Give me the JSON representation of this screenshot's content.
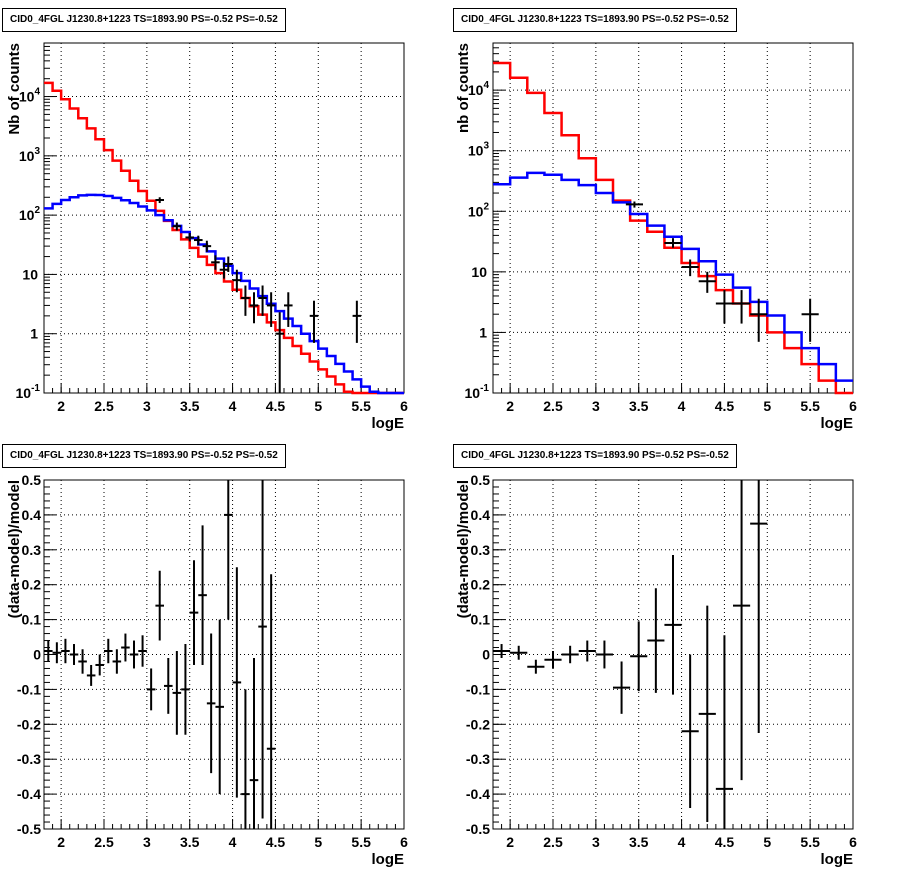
{
  "chart_data": [
    {
      "type": "histogram-log",
      "title": "CID0_4FGL J1230.8+1223 TS=1893.90 PS=-0.52 PS=-0.52",
      "xlabel": "logE",
      "ylabel": "Nb of counts",
      "xlim": [
        1.8,
        6.0
      ],
      "ylim": [
        0.1,
        80000
      ],
      "log_y": true,
      "grid": true,
      "x_ticks": [
        "2",
        "2.5",
        "3",
        "3.5",
        "4",
        "4.5",
        "5",
        "5.5",
        "6"
      ],
      "y_ticks": [
        "10^-1",
        "1",
        "10",
        "10^2",
        "10^3",
        "10^4"
      ],
      "bin_width": 0.1,
      "bin_edges_start": 1.8,
      "series": [
        {
          "color": "#ff0000",
          "values": [
            17000,
            12500,
            9000,
            6300,
            4300,
            2900,
            1900,
            1250,
            830,
            560,
            380,
            255,
            175,
            118,
            80,
            56,
            39,
            28,
            20,
            14.5,
            10.5,
            7.6,
            5.5,
            4.0,
            2.9,
            2.1,
            1.55,
            1.15,
            0.85,
            0.62,
            0.46,
            0.34,
            0.25,
            0.19,
            0.14,
            0.105,
            0.1,
            0.1,
            0.1,
            0.1,
            0.1,
            0.1
          ]
        },
        {
          "color": "#0000ff",
          "values": [
            130,
            155,
            180,
            200,
            215,
            220,
            218,
            210,
            195,
            178,
            160,
            140,
            120,
            100,
            82,
            66,
            52,
            41,
            32,
            24.5,
            18.5,
            14,
            10.5,
            7.8,
            5.8,
            4.3,
            3.2,
            2.4,
            1.8,
            1.35,
            1.0,
            0.75,
            0.56,
            0.42,
            0.31,
            0.23,
            0.17,
            0.128,
            0.105,
            0.1,
            0.1,
            0.1
          ]
        }
      ],
      "points": [
        {
          "x": 3.15,
          "y": 180,
          "lo": 160,
          "hi": 200
        },
        {
          "x": 3.35,
          "y": 65,
          "lo": 55,
          "hi": 75
        },
        {
          "x": 3.5,
          "y": 42,
          "lo": 36,
          "hi": 50
        },
        {
          "x": 3.6,
          "y": 38,
          "lo": 31,
          "hi": 45
        },
        {
          "x": 3.7,
          "y": 30,
          "lo": 24,
          "hi": 37
        },
        {
          "x": 3.8,
          "y": 16,
          "lo": 12,
          "hi": 21
        },
        {
          "x": 3.9,
          "y": 12,
          "lo": 8.5,
          "hi": 16
        },
        {
          "x": 3.95,
          "y": 15,
          "lo": 11,
          "hi": 20
        },
        {
          "x": 4.05,
          "y": 8,
          "lo": 5,
          "hi": 12
        },
        {
          "x": 4.15,
          "y": 4,
          "lo": 2,
          "hi": 6.5
        },
        {
          "x": 4.25,
          "y": 3,
          "lo": 1.5,
          "hi": 5
        },
        {
          "x": 4.35,
          "y": 4,
          "lo": 2,
          "hi": 6.5
        },
        {
          "x": 4.45,
          "y": 3,
          "lo": 1.3,
          "hi": 5
        },
        {
          "x": 4.55,
          "y": 1,
          "lo": 0.08,
          "hi": 2.3
        },
        {
          "x": 4.65,
          "y": 3,
          "lo": 1.3,
          "hi": 5
        },
        {
          "x": 4.95,
          "y": 2,
          "lo": 0.7,
          "hi": 3.6
        },
        {
          "x": 5.45,
          "y": 2,
          "lo": 0.7,
          "hi": 3.6
        }
      ]
    },
    {
      "type": "histogram-log",
      "title": "CID0_4FGL J1230.8+1223 TS=1893.90 PS=-0.52 PS=-0.52",
      "xlabel": "logE",
      "ylabel": "nb of counts",
      "xlim": [
        1.8,
        6.0
      ],
      "ylim": [
        0.1,
        60000
      ],
      "log_y": true,
      "grid": true,
      "x_ticks": [
        "2",
        "2.5",
        "3",
        "3.5",
        "4",
        "4.5",
        "5",
        "5.5",
        "6"
      ],
      "y_ticks": [
        "10^-1",
        "1",
        "10",
        "10^2",
        "10^3",
        "10^4"
      ],
      "bin_width": 0.2,
      "bin_edges_start": 1.8,
      "series": [
        {
          "color": "#ff0000",
          "values": [
            28000,
            16000,
            9000,
            4200,
            1800,
            750,
            330,
            150,
            70,
            46,
            25,
            14,
            8.5,
            5,
            3,
            1.9,
            1.0,
            0.55,
            0.3,
            0.16,
            0.1
          ]
        },
        {
          "color": "#0000ff",
          "values": [
            280,
            360,
            430,
            400,
            330,
            270,
            200,
            140,
            90,
            58,
            38,
            24,
            15,
            9,
            5.5,
            3.2,
            1.9,
            1.0,
            0.55,
            0.3,
            0.16
          ]
        }
      ],
      "points": [
        {
          "x": 3.45,
          "y": 130,
          "lo": 115,
          "hi": 145
        },
        {
          "x": 3.9,
          "y": 30,
          "lo": 25,
          "hi": 36
        },
        {
          "x": 4.1,
          "y": 12,
          "lo": 8.5,
          "hi": 16
        },
        {
          "x": 4.3,
          "y": 7,
          "lo": 4.5,
          "hi": 10
        },
        {
          "x": 4.5,
          "y": 3,
          "lo": 1.4,
          "hi": 5
        },
        {
          "x": 4.7,
          "y": 3,
          "lo": 1.4,
          "hi": 5
        },
        {
          "x": 4.9,
          "y": 2,
          "lo": 0.7,
          "hi": 3.6
        },
        {
          "x": 5.5,
          "y": 2,
          "lo": 0.7,
          "hi": 3.6
        }
      ]
    },
    {
      "type": "errorbar",
      "title": "CID0_4FGL J1230.8+1223 TS=1893.90 PS=-0.52 PS=-0.52",
      "xlabel": "logE",
      "ylabel": "(data-model)/model",
      "xlim": [
        1.8,
        6.0
      ],
      "ylim": [
        -0.5,
        0.5
      ],
      "grid": true,
      "x_ticks": [
        "2",
        "2.5",
        "3",
        "3.5",
        "4",
        "4.5",
        "5",
        "5.5",
        "6"
      ],
      "y_ticks": [
        "-0.5",
        "-0.4",
        "-0.3",
        "-0.2",
        "-0.1",
        "0",
        "0.1",
        "0.2",
        "0.3",
        "0.4",
        "0.5"
      ],
      "bin_width": 0.1,
      "points": [
        {
          "x": 1.85,
          "y": 0.01,
          "err": 0.03
        },
        {
          "x": 1.95,
          "y": 0.005,
          "err": 0.03
        },
        {
          "x": 2.05,
          "y": 0.01,
          "err": 0.035
        },
        {
          "x": 2.15,
          "y": 0.0,
          "err": 0.03
        },
        {
          "x": 2.25,
          "y": -0.02,
          "err": 0.035
        },
        {
          "x": 2.35,
          "y": -0.06,
          "err": 0.03
        },
        {
          "x": 2.45,
          "y": -0.03,
          "err": 0.03
        },
        {
          "x": 2.55,
          "y": 0.01,
          "err": 0.035
        },
        {
          "x": 2.65,
          "y": -0.02,
          "err": 0.035
        },
        {
          "x": 2.75,
          "y": 0.02,
          "err": 0.04
        },
        {
          "x": 2.85,
          "y": 0.0,
          "err": 0.04
        },
        {
          "x": 2.95,
          "y": 0.01,
          "err": 0.045
        },
        {
          "x": 3.05,
          "y": -0.1,
          "err": 0.06
        },
        {
          "x": 3.15,
          "y": 0.14,
          "err": 0.1
        },
        {
          "x": 3.25,
          "y": -0.09,
          "err": 0.08
        },
        {
          "x": 3.35,
          "y": -0.11,
          "err": 0.12
        },
        {
          "x": 3.45,
          "y": -0.1,
          "err": 0.13
        },
        {
          "x": 3.55,
          "y": 0.12,
          "err": 0.15
        },
        {
          "x": 3.65,
          "y": 0.17,
          "err": 0.2
        },
        {
          "x": 3.75,
          "y": -0.14,
          "err": 0.2
        },
        {
          "x": 3.85,
          "y": -0.15,
          "err": 0.25
        },
        {
          "x": 3.95,
          "y": 0.4,
          "err": 0.3
        },
        {
          "x": 4.05,
          "y": -0.08,
          "err": 0.33
        },
        {
          "x": 4.15,
          "y": -0.4,
          "err": 0.3
        },
        {
          "x": 4.25,
          "y": -0.36,
          "err": 0.35
        },
        {
          "x": 4.35,
          "y": 0.08,
          "err": 0.55
        },
        {
          "x": 4.45,
          "y": -0.27,
          "err": 0.5
        }
      ]
    },
    {
      "type": "errorbar",
      "title": "CID0_4FGL J1230.8+1223 TS=1893.90 PS=-0.52 PS=-0.52",
      "xlabel": "logE",
      "ylabel": "(data-model)/model",
      "xlim": [
        1.8,
        6.0
      ],
      "ylim": [
        -0.5,
        0.5
      ],
      "grid": true,
      "x_ticks": [
        "2",
        "2.5",
        "3",
        "3.5",
        "4",
        "4.5",
        "5",
        "5.5",
        "6"
      ],
      "y_ticks": [
        "-0.5",
        "-0.4",
        "-0.3",
        "-0.2",
        "-0.1",
        "0",
        "0.1",
        "0.2",
        "0.3",
        "0.4",
        "0.5"
      ],
      "bin_width": 0.2,
      "points": [
        {
          "x": 1.9,
          "y": 0.01,
          "err": 0.02
        },
        {
          "x": 2.1,
          "y": 0.005,
          "err": 0.02
        },
        {
          "x": 2.3,
          "y": -0.035,
          "err": 0.02
        },
        {
          "x": 2.5,
          "y": -0.015,
          "err": 0.025
        },
        {
          "x": 2.7,
          "y": 0.0,
          "err": 0.025
        },
        {
          "x": 2.9,
          "y": 0.01,
          "err": 0.03
        },
        {
          "x": 3.1,
          "y": 0.0,
          "err": 0.04
        },
        {
          "x": 3.3,
          "y": -0.095,
          "err": 0.075
        },
        {
          "x": 3.5,
          "y": -0.005,
          "err": 0.1
        },
        {
          "x": 3.7,
          "y": 0.04,
          "err": 0.15
        },
        {
          "x": 3.9,
          "y": 0.085,
          "err": 0.2
        },
        {
          "x": 4.1,
          "y": -0.22,
          "err": 0.22
        },
        {
          "x": 4.3,
          "y": -0.17,
          "err": 0.31
        },
        {
          "x": 4.5,
          "y": -0.385,
          "err": 0.44
        },
        {
          "x": 4.7,
          "y": 0.14,
          "err": 0.5
        },
        {
          "x": 4.9,
          "y": 0.375,
          "err": 0.6
        }
      ]
    }
  ]
}
